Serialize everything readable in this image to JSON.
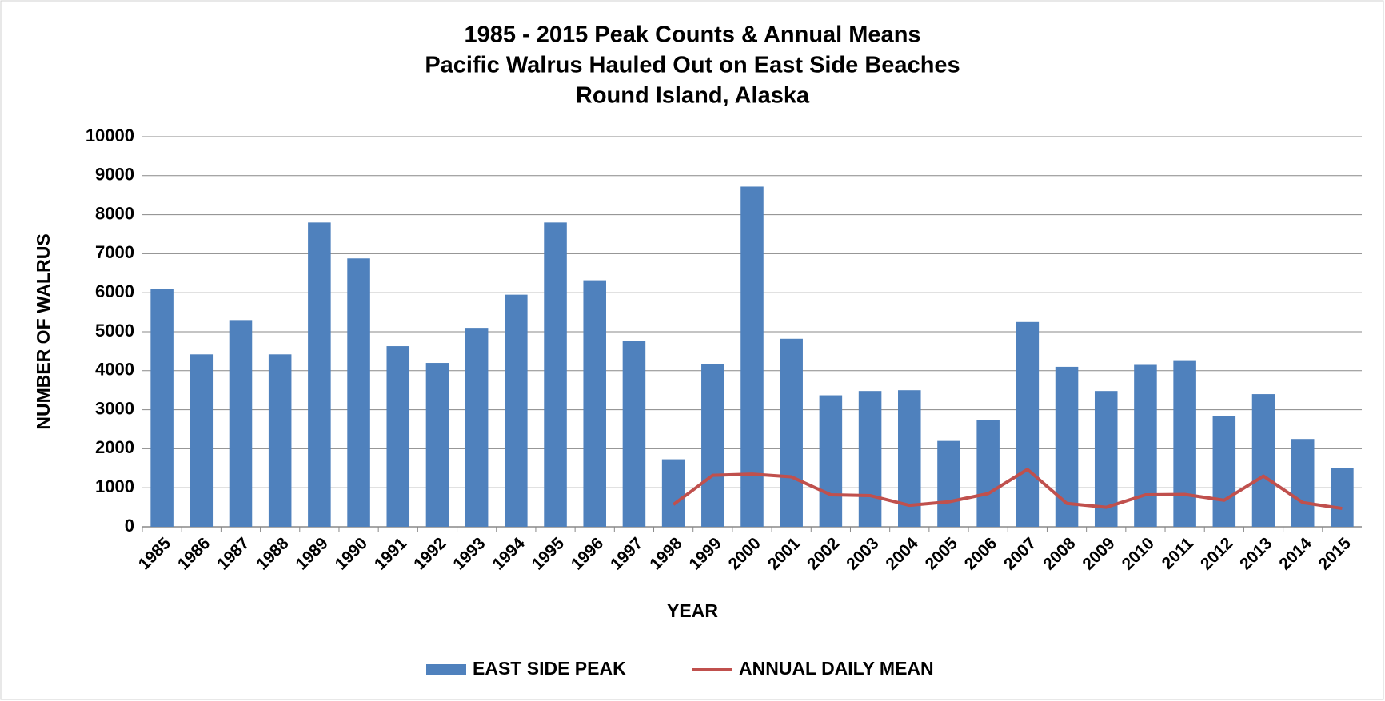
{
  "chart_data": {
    "type": "bar",
    "title": "1985 - 2015 Peak Counts & Annual Means",
    "subtitle": [
      "Pacific Walrus Hauled Out on East Side Beaches",
      "Round Island, Alaska"
    ],
    "x_label": "YEAR",
    "y_label": "NUMBER OF WALRUS",
    "categories": [
      "1985",
      "1986",
      "1987",
      "1988",
      "1989",
      "1990",
      "1991",
      "1992",
      "1993",
      "1994",
      "1995",
      "1996",
      "1997",
      "1998",
      "1999",
      "2000",
      "2001",
      "2002",
      "2003",
      "2004",
      "2005",
      "2006",
      "2007",
      "2008",
      "2009",
      "2010",
      "2011",
      "2012",
      "2013",
      "2014",
      "2015"
    ],
    "series": [
      {
        "name": "EAST SIDE PEAK",
        "type": "bar",
        "color": "#4f81bd",
        "values": [
          6100,
          4420,
          5300,
          4420,
          7800,
          6880,
          4630,
          4200,
          5100,
          5950,
          7800,
          6320,
          4770,
          1730,
          4170,
          8720,
          4820,
          3370,
          3480,
          3500,
          2200,
          2730,
          5250,
          4100,
          3480,
          4150,
          4250,
          2830,
          3400,
          2250,
          1500
        ]
      },
      {
        "name": "ANNUAL DAILY MEAN",
        "type": "line",
        "color": "#c0504d",
        "values": [
          null,
          null,
          null,
          null,
          null,
          null,
          null,
          null,
          null,
          null,
          null,
          null,
          null,
          570,
          1320,
          1350,
          1280,
          820,
          800,
          550,
          640,
          850,
          1470,
          600,
          500,
          820,
          830,
          680,
          1300,
          620,
          470
        ]
      }
    ],
    "ylim": [
      0,
      10000
    ],
    "yticks": [
      0,
      1000,
      2000,
      3000,
      4000,
      5000,
      6000,
      7000,
      8000,
      9000,
      10000
    ],
    "grid": true,
    "legend": "bottom"
  }
}
